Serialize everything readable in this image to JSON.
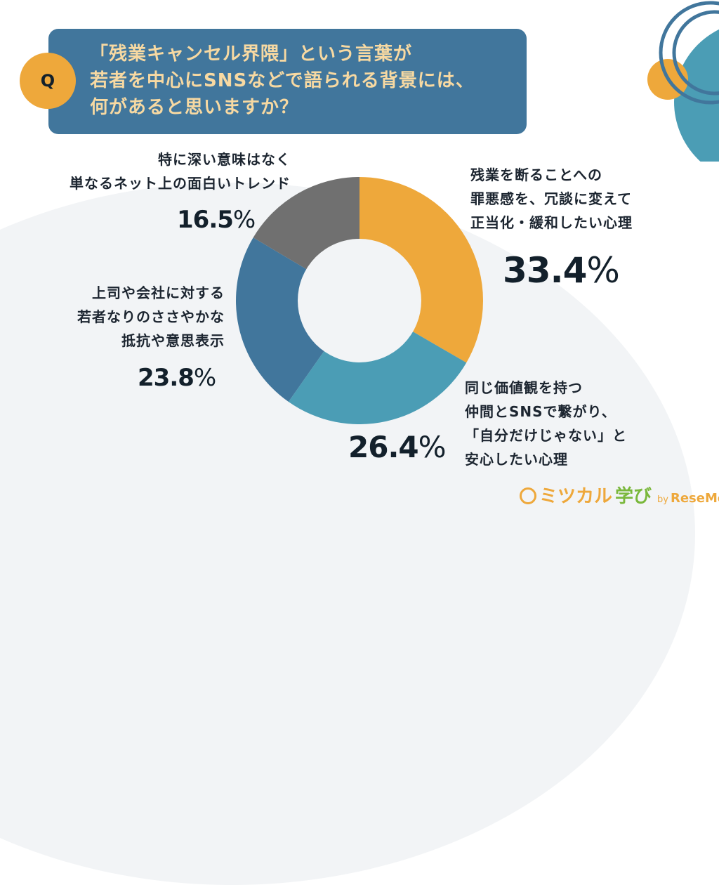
{
  "header": {
    "badge": "Q",
    "question_lines": [
      "「残業キャンセル界隈」という言葉が",
      "若者を中心にSNSなどで語られる背景には、",
      "何があると思いますか？"
    ]
  },
  "colors": {
    "header_bg": "#41769c",
    "header_text": "#f7d9a2",
    "accent_orange": "#eea83b",
    "teal": "#4b9db5",
    "blue": "#41769c",
    "gray": "#707070",
    "text_dark": "#1c2530"
  },
  "segments": [
    {
      "label_lines": [
        "残業を断ることへの",
        "罪悪感を、冗談に変えて",
        "正当化・緩和したい心理"
      ],
      "value": "33.4",
      "unit": "%"
    },
    {
      "label_lines": [
        "同じ価値観を持つ",
        "仲間とSNSで繋がり、",
        "「自分だけじゃない」と",
        "安心したい心理"
      ],
      "value": "26.4",
      "unit": "%"
    },
    {
      "label_lines": [
        "上司や会社に対する",
        "若者なりのささやかな",
        "抵抗や意思表示"
      ],
      "value": "23.8",
      "unit": "%"
    },
    {
      "label_lines": [
        "特に深い意味はなく",
        "単なるネット上の面白いトレンド"
      ],
      "value": "16.5",
      "unit": "%"
    }
  ],
  "logo": {
    "part1": "ミツカル",
    "part2": "学び",
    "by": "by",
    "brand": "ReseMom"
  },
  "chart_data": {
    "type": "pie",
    "variant": "donut",
    "title": "「残業キャンセル界隈」という言葉が若者を中心にSNSなどで語られる背景には、何があると思いますか？",
    "categories": [
      "残業を断ることへの罪悪感を、冗談に変えて正当化・緩和したい心理",
      "同じ価値観を持つ仲間とSNSで繋がり、「自分だけじゃない」と安心したい心理",
      "上司や会社に対する若者なりのささやかな抵抗や意思表示",
      "特に深い意味はなく単なるネット上の面白いトレンド"
    ],
    "values": [
      33.4,
      26.4,
      23.8,
      16.5
    ],
    "unit": "%",
    "colors": [
      "#eea83b",
      "#4b9db5",
      "#41769c",
      "#707070"
    ],
    "start_angle": "top, clockwise",
    "legend_position": "labels around chart"
  }
}
